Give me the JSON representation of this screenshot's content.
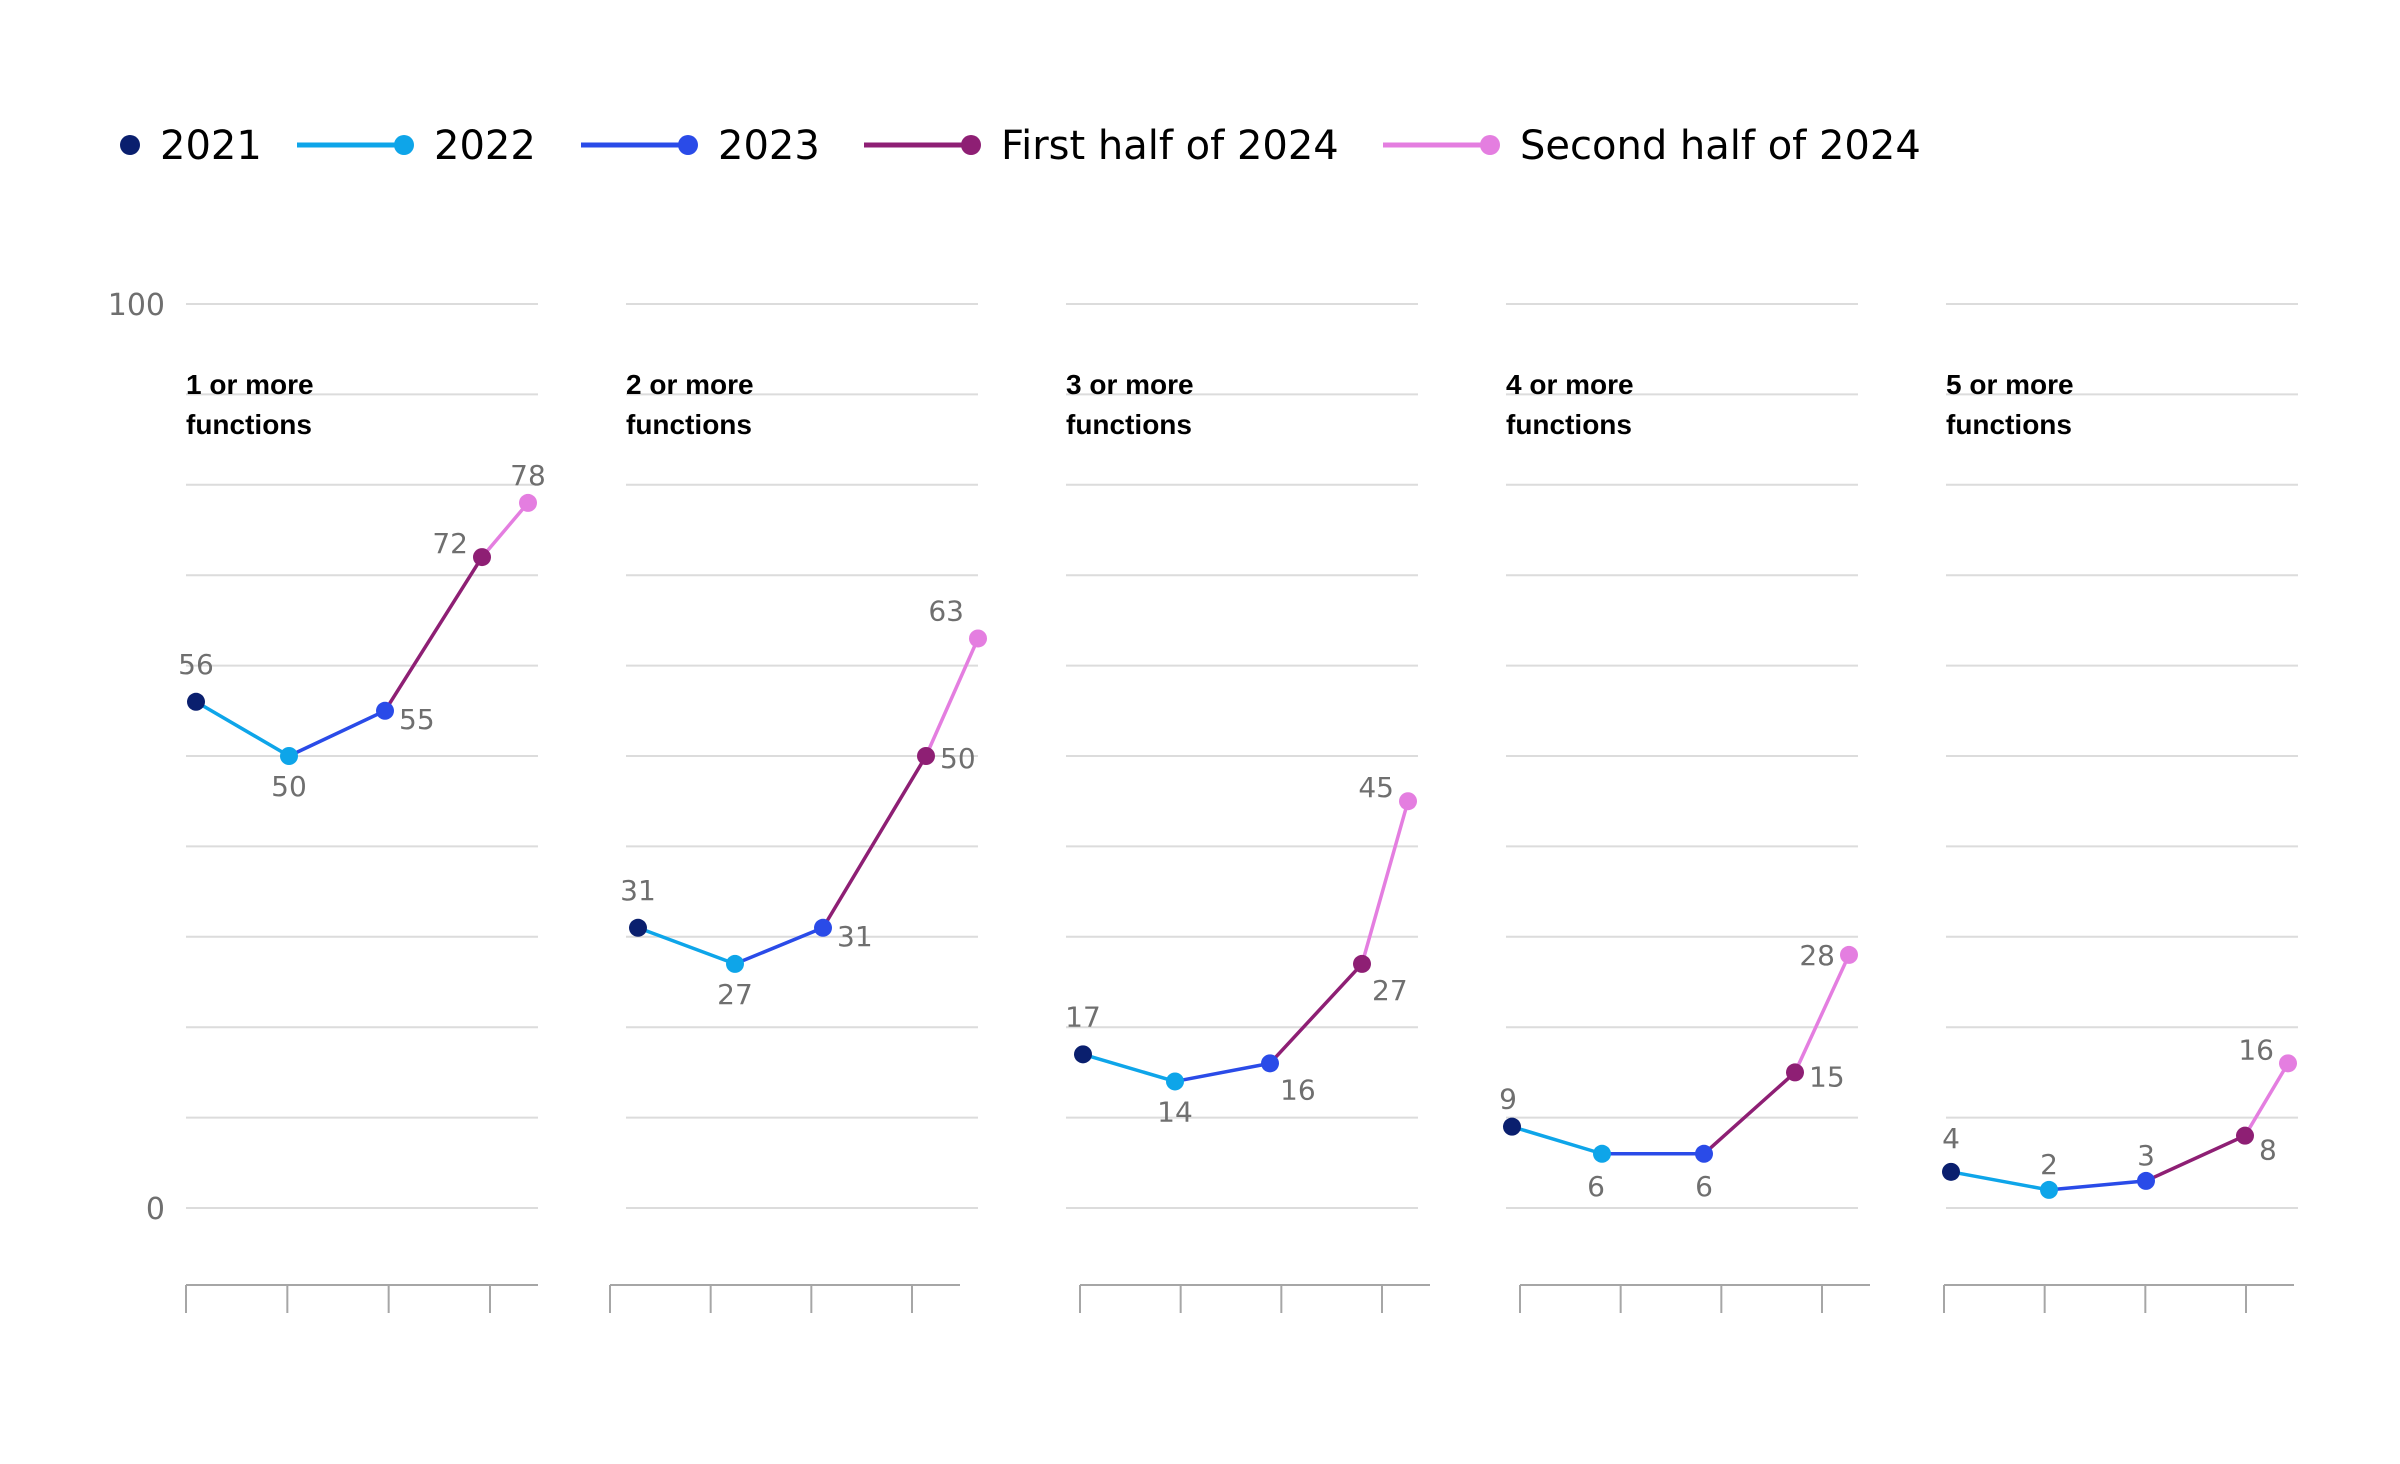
{
  "chart_data": {
    "type": "line",
    "ylim": [
      0,
      100
    ],
    "y_ticks": [
      "100",
      "0"
    ],
    "grid": true,
    "legend_position": "top-left",
    "x": [
      "2021",
      "2022",
      "2023",
      "First half of 2024",
      "Second half of 2024"
    ],
    "legend": [
      {
        "name": "2021",
        "color": "#0a1f6e"
      },
      {
        "name": "2022",
        "color": "#0ea5e9"
      },
      {
        "name": "2023",
        "color": "#2a4be8"
      },
      {
        "name": "First half of 2024",
        "color": "#8e1f74"
      },
      {
        "name": "Second half of 2024",
        "color": "#e47ee0"
      }
    ],
    "panels": [
      {
        "title_line1": "1 or more",
        "title_line2": "functions",
        "values": [
          56,
          50,
          55,
          72,
          78
        ],
        "labels": [
          "56",
          "50",
          "55",
          "72",
          "78"
        ]
      },
      {
        "title_line1": "2 or more",
        "title_line2": "functions",
        "values": [
          31,
          27,
          31,
          50,
          63
        ],
        "labels": [
          "31",
          "27",
          "31",
          "50",
          "63"
        ]
      },
      {
        "title_line1": "3 or more",
        "title_line2": "functions",
        "values": [
          17,
          14,
          16,
          27,
          45
        ],
        "labels": [
          "17",
          "14",
          "16",
          "27",
          "45"
        ]
      },
      {
        "title_line1": "4 or more",
        "title_line2": "functions",
        "values": [
          9,
          6,
          6,
          15,
          28
        ],
        "labels": [
          "9",
          "6",
          "6",
          "15",
          "28"
        ]
      },
      {
        "title_line1": "5 or more",
        "title_line2": "functions",
        "values": [
          4,
          2,
          3,
          8,
          16
        ],
        "labels": [
          "4",
          "2",
          "3",
          "8",
          "16"
        ]
      }
    ]
  }
}
